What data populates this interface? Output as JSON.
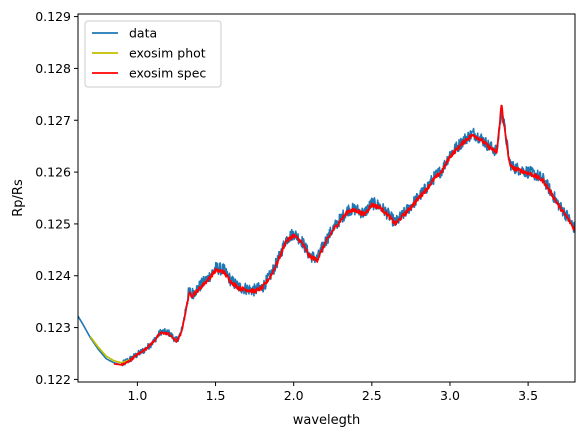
{
  "chart_data": {
    "type": "line",
    "xlabel": "wavelegth",
    "ylabel": "Rp/Rs",
    "xlim": [
      0.62,
      3.8
    ],
    "ylim": [
      0.12195,
      0.12905
    ],
    "xticks": [
      1.0,
      1.5,
      2.0,
      2.5,
      3.0,
      3.5
    ],
    "xtick_labels": [
      "1.0",
      "1.5",
      "2.0",
      "2.5",
      "3.0",
      "3.5"
    ],
    "yticks": [
      0.122,
      0.123,
      0.124,
      0.125,
      0.126,
      0.127,
      0.128,
      0.129
    ],
    "ytick_labels": [
      "0.122",
      "0.123",
      "0.124",
      "0.125",
      "0.126",
      "0.127",
      "0.128",
      "0.129"
    ],
    "grid": false,
    "legend_position": "top-left",
    "series": [
      {
        "name": "data",
        "color": "#1f77b4",
        "noise": 0.00012,
        "x": [
          0.62,
          0.65,
          0.7,
          0.75,
          0.8,
          0.85,
          0.9,
          0.93,
          0.95,
          1.0,
          1.05,
          1.1,
          1.15,
          1.2,
          1.25,
          1.28,
          1.3,
          1.33,
          1.35,
          1.4,
          1.45,
          1.5,
          1.55,
          1.6,
          1.65,
          1.7,
          1.75,
          1.8,
          1.85,
          1.9,
          1.95,
          2.0,
          2.05,
          2.1,
          2.15,
          2.2,
          2.25,
          2.3,
          2.35,
          2.4,
          2.45,
          2.5,
          2.55,
          2.6,
          2.65,
          2.7,
          2.75,
          2.8,
          2.85,
          2.9,
          2.95,
          3.0,
          3.05,
          3.1,
          3.15,
          3.2,
          3.25,
          3.3,
          3.33,
          3.35,
          3.38,
          3.4,
          3.45,
          3.5,
          3.55,
          3.6,
          3.65,
          3.7,
          3.75,
          3.8
        ],
        "y": [
          0.12322,
          0.12307,
          0.1228,
          0.12258,
          0.1224,
          0.12232,
          0.12228,
          0.12235,
          0.12238,
          0.12248,
          0.12258,
          0.12272,
          0.12292,
          0.1229,
          0.12275,
          0.1229,
          0.1232,
          0.1237,
          0.12365,
          0.1238,
          0.12395,
          0.12415,
          0.12412,
          0.1239,
          0.12378,
          0.12375,
          0.12372,
          0.12378,
          0.124,
          0.1243,
          0.1247,
          0.12482,
          0.12468,
          0.1244,
          0.12432,
          0.12465,
          0.1249,
          0.1251,
          0.12528,
          0.12528,
          0.1252,
          0.1254,
          0.12535,
          0.1252,
          0.12502,
          0.12518,
          0.12535,
          0.12552,
          0.1257,
          0.1259,
          0.12605,
          0.12635,
          0.1265,
          0.12665,
          0.12675,
          0.12665,
          0.1265,
          0.1264,
          0.1272,
          0.12685,
          0.1262,
          0.1261,
          0.12605,
          0.126,
          0.12595,
          0.12585,
          0.1256,
          0.12535,
          0.12515,
          0.1249
        ]
      },
      {
        "name": "exosim phot",
        "color": "#bfbf00",
        "noise": 0.0,
        "x": [
          0.7,
          0.75,
          0.8,
          0.85,
          0.9,
          0.95
        ],
        "y": [
          0.12282,
          0.12262,
          0.12245,
          0.12236,
          0.12232,
          0.12238
        ]
      },
      {
        "name": "exosim spec",
        "color": "#ff0000",
        "noise": 4e-05,
        "x": [
          0.85,
          0.9,
          0.93,
          0.95,
          1.0,
          1.05,
          1.1,
          1.15,
          1.2,
          1.25,
          1.28,
          1.3,
          1.33,
          1.35,
          1.4,
          1.45,
          1.5,
          1.55,
          1.6,
          1.65,
          1.7,
          1.75,
          1.8,
          1.85,
          1.9,
          1.95,
          2.0,
          2.05,
          2.1,
          2.15,
          2.2,
          2.25,
          2.3,
          2.35,
          2.4,
          2.45,
          2.5,
          2.55,
          2.6,
          2.65,
          2.7,
          2.75,
          2.8,
          2.85,
          2.9,
          2.95,
          3.0,
          3.05,
          3.1,
          3.15,
          3.2,
          3.25,
          3.3,
          3.33,
          3.35,
          3.38,
          3.4,
          3.45,
          3.5,
          3.55,
          3.6,
          3.65,
          3.7,
          3.75,
          3.8
        ],
        "y": [
          0.1223,
          0.12228,
          0.12232,
          0.12236,
          0.12248,
          0.12258,
          0.12272,
          0.1229,
          0.12288,
          0.12273,
          0.12288,
          0.12318,
          0.12365,
          0.12362,
          0.12376,
          0.12392,
          0.1241,
          0.12408,
          0.12388,
          0.12376,
          0.12373,
          0.1237,
          0.12377,
          0.12398,
          0.12428,
          0.12466,
          0.12478,
          0.12465,
          0.12438,
          0.1243,
          0.12462,
          0.12487,
          0.12507,
          0.12525,
          0.12526,
          0.12518,
          0.12537,
          0.12532,
          0.12518,
          0.125,
          0.12516,
          0.12532,
          0.1255,
          0.12567,
          0.12587,
          0.12602,
          0.1263,
          0.12646,
          0.12662,
          0.12672,
          0.12662,
          0.12648,
          0.12638,
          0.12732,
          0.12682,
          0.12618,
          0.12608,
          0.12603,
          0.12598,
          0.12592,
          0.12582,
          0.12558,
          0.12533,
          0.12512,
          0.12488
        ]
      }
    ]
  }
}
